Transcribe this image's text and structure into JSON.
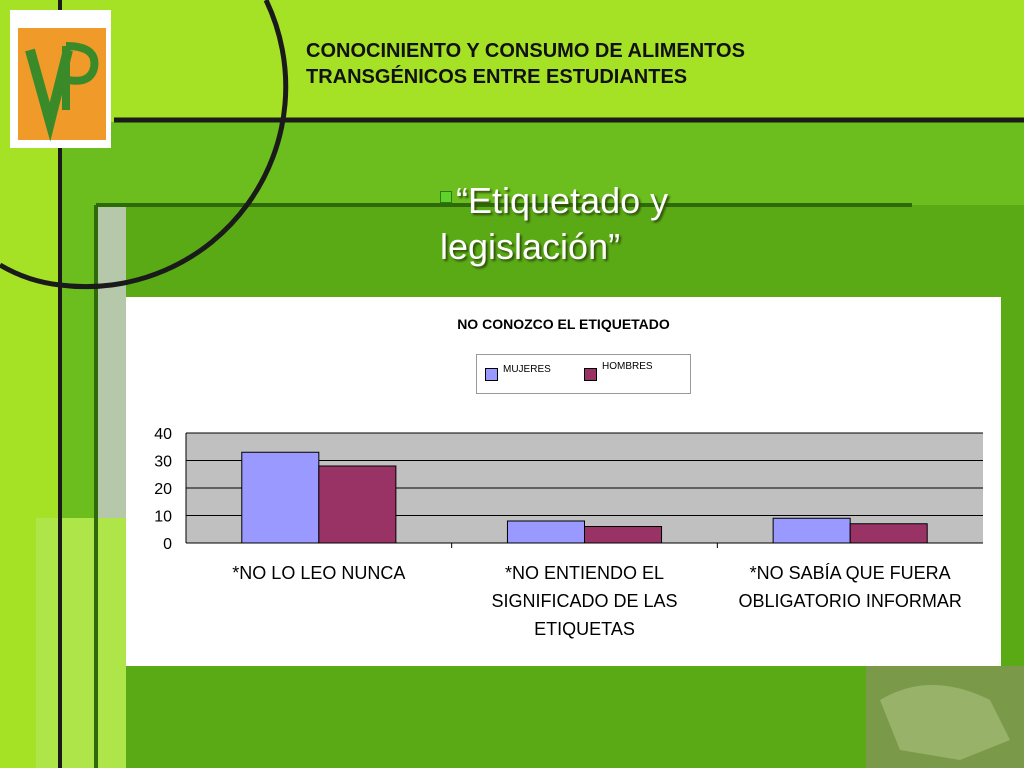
{
  "header": {
    "title_line1": "CONOCINIENTO Y CONSUMO DE ALIMENTOS",
    "title_line2": "TRANSGÉNICOS ENTRE ESTUDIANTES"
  },
  "subtitle": {
    "line1": "“Etiquetado y",
    "line2": "legislación”"
  },
  "logo": {
    "icon": "vp-logo-icon"
  },
  "colors": {
    "green_light": "#a5e125",
    "green_mid": "#7ccf1a",
    "green_dark": "#4f9a16",
    "series_mujeres": "#9999ff",
    "series_hombres": "#993366",
    "plot_bg": "#c0c0c0"
  },
  "chart_data": {
    "type": "bar",
    "title": "NO CONOZCO EL ETIQUETADO",
    "categories": [
      [
        "*NO LO LEO NUNCA"
      ],
      [
        "*NO ENTIENDO EL",
        "SIGNIFICADO DE LAS",
        "ETIQUETAS"
      ],
      [
        "*NO SABÍA QUE FUERA",
        "OBLIGATORIO INFORMAR"
      ]
    ],
    "series": [
      {
        "name": "MUJERES",
        "values": [
          33,
          8,
          9
        ]
      },
      {
        "name": "HOMBRES",
        "values": [
          28,
          6,
          7
        ]
      }
    ],
    "ylim": [
      0,
      40
    ],
    "yticks": [
      0,
      10,
      20,
      30,
      40
    ],
    "grid": true,
    "legend_position": "top"
  }
}
